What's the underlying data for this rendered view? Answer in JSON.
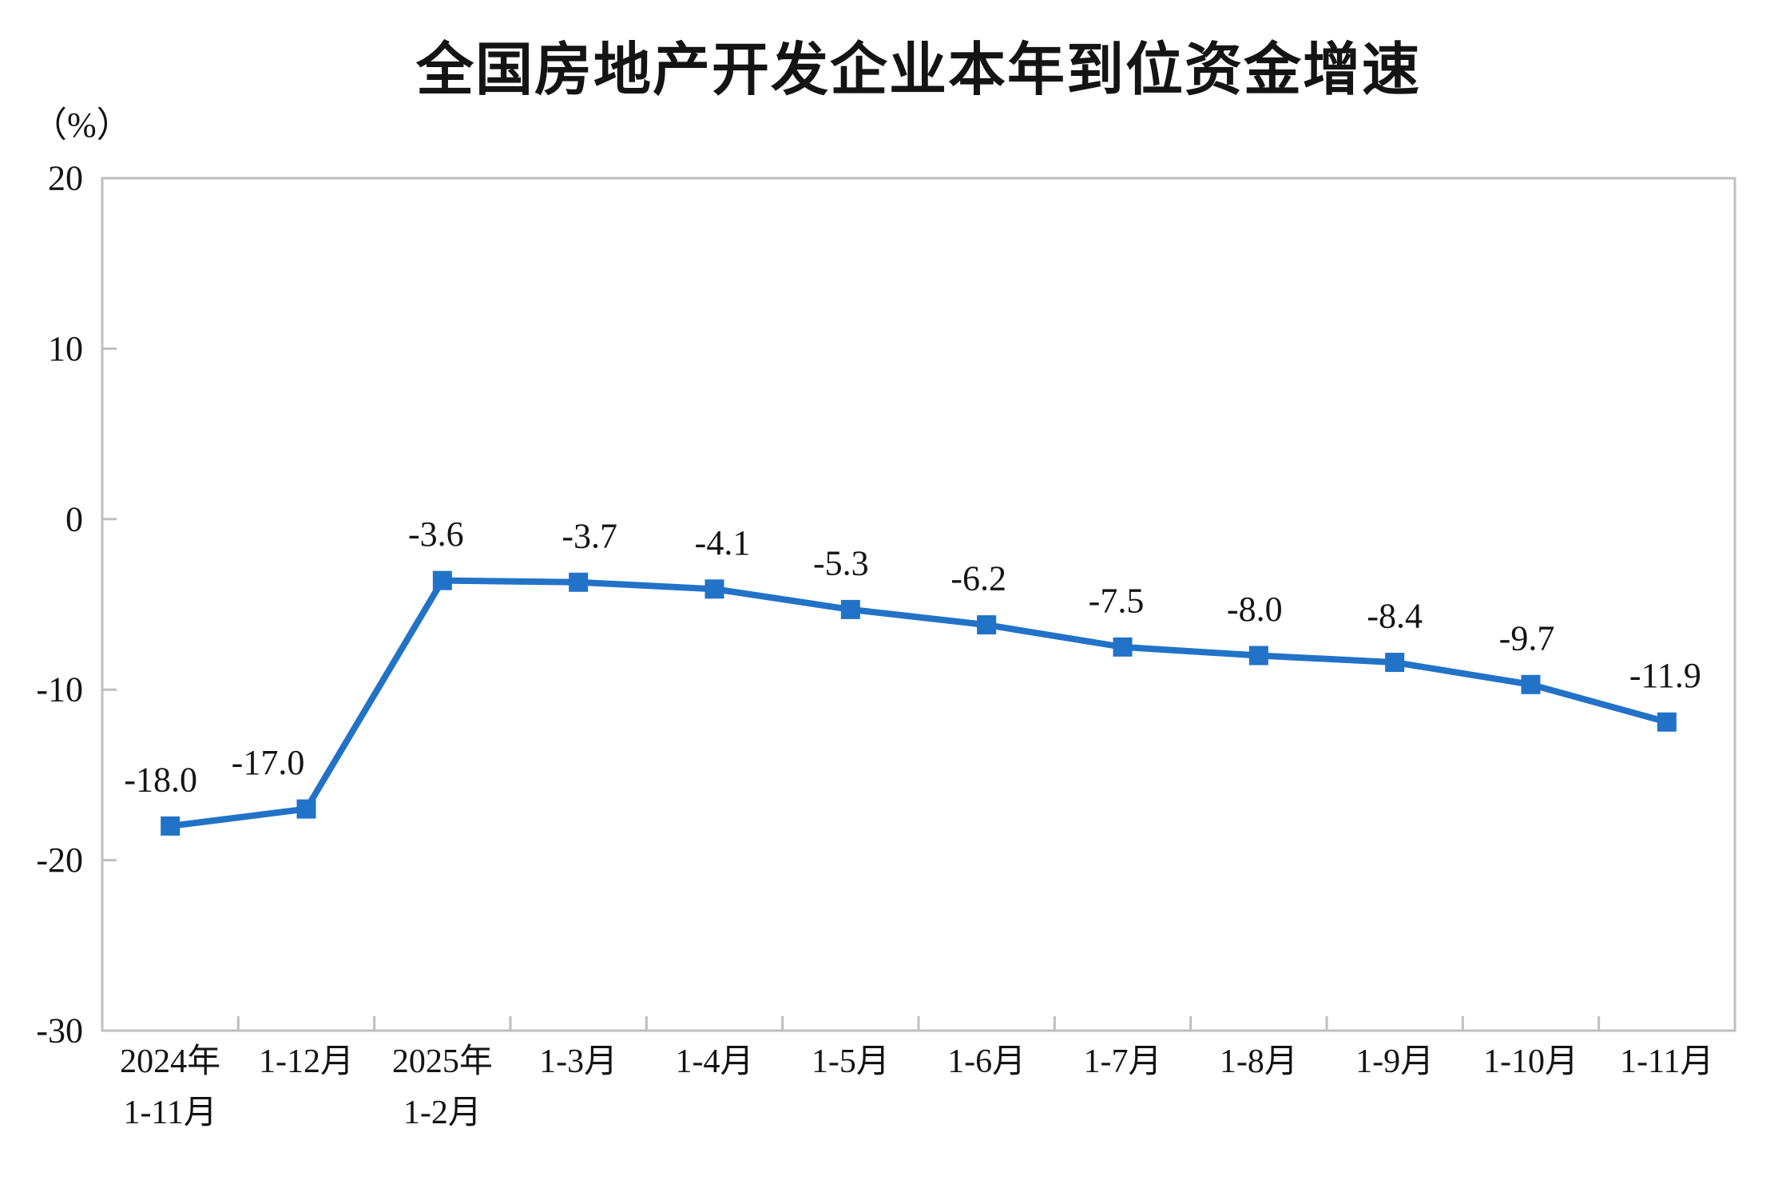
{
  "title": "全国房地产开发企业本年到位资金增速",
  "y_axis_unit": "（%）",
  "chart_data": {
    "type": "line",
    "title": "全国房地产开发企业本年到位资金增速",
    "ylabel": "（%）",
    "categories": [
      [
        "2024年",
        "1-11月"
      ],
      [
        "1-12月"
      ],
      [
        "2025年",
        "1-2月"
      ],
      [
        "1-3月"
      ],
      [
        "1-4月"
      ],
      [
        "1-5月"
      ],
      [
        "1-6月"
      ],
      [
        "1-7月"
      ],
      [
        "1-8月"
      ],
      [
        "1-9月"
      ],
      [
        "1-10月"
      ],
      [
        "1-11月"
      ]
    ],
    "values": [
      -18.0,
      -17.0,
      -3.6,
      -3.7,
      -4.1,
      -5.3,
      -6.2,
      -7.5,
      -8.0,
      -8.4,
      -9.7,
      -11.9
    ],
    "labels": [
      "-18.0",
      "-17.0",
      "-3.6",
      "-3.7",
      "-4.1",
      "-5.3",
      "-6.2",
      "-7.5",
      "-8.0",
      "-8.4",
      "-9.7",
      "-11.9"
    ],
    "ylim": [
      -30,
      20
    ],
    "yticks": [
      20,
      10,
      0,
      -10,
      -20,
      -30
    ],
    "grid": false,
    "legend_position": "none",
    "marker": "square",
    "line_color": "#2272C8",
    "axis_color": "#BFBFBF",
    "text_color": "#141414"
  }
}
